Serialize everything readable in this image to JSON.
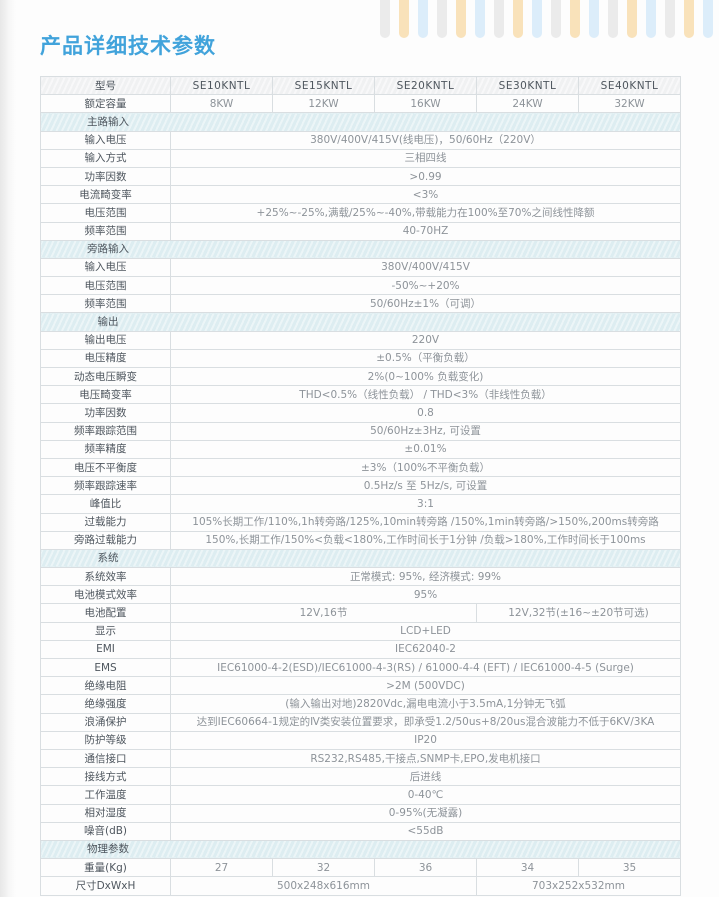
{
  "page": {
    "title": "产品详细技术参数"
  },
  "colors": {
    "accent_blue": "#41a3db",
    "section_bg": "#ddedf1",
    "header_bg": "#f0f1f2",
    "border": "#d9dee1",
    "label_text": "#4e565e",
    "value_text": "#8d9399"
  },
  "decor": {
    "bar_count": 18,
    "bar_colors": [
      "#ebebeb",
      "#f9e2ba",
      "#dcedfa"
    ]
  },
  "table": {
    "header": {
      "label": "型号",
      "models": [
        "SE10KNTL",
        "SE15KNTL",
        "SE20KNTL",
        "SE30KNTL",
        "SE40KNTL"
      ]
    },
    "rows": [
      {
        "type": "cells",
        "label": "额定容量",
        "values": [
          "8KW",
          "12KW",
          "16KW",
          "24KW",
          "32KW"
        ]
      },
      {
        "type": "section",
        "label": "主路输入"
      },
      {
        "type": "span",
        "label": "输入电压",
        "value": "380V/400V/415V(线电压)，50/60Hz（220V）"
      },
      {
        "type": "span",
        "label": "输入方式",
        "value": "三相四线"
      },
      {
        "type": "span",
        "label": "功率因数",
        "value": ">0.99"
      },
      {
        "type": "span",
        "label": "电流畸变率",
        "value": "<3%"
      },
      {
        "type": "span",
        "label": "电压范围",
        "value": "+25%~-25%,满载/25%~-40%,带载能力在100%至70%之间线性降额"
      },
      {
        "type": "span",
        "label": "频率范围",
        "value": "40-70HZ"
      },
      {
        "type": "section",
        "label": "旁路输入"
      },
      {
        "type": "span",
        "label": "输入电压",
        "value": "380V/400V/415V"
      },
      {
        "type": "span",
        "label": "电压范围",
        "value": "-50%~+20%"
      },
      {
        "type": "span",
        "label": "频率范围",
        "value": "50/60Hz±1%（可调）"
      },
      {
        "type": "section",
        "label": "输出"
      },
      {
        "type": "span",
        "label": "输出电压",
        "value": "220V"
      },
      {
        "type": "span",
        "label": "电压精度",
        "value": "±0.5%（平衡负载）"
      },
      {
        "type": "span",
        "label": "动态电压瞬变",
        "value": "2%(0~100% 负载变化)"
      },
      {
        "type": "span",
        "label": "电压畸变率",
        "value": "THD<0.5%（线性负载） /  THD<3%（非线性负载）"
      },
      {
        "type": "span",
        "label": "功率因数",
        "value": "0.8"
      },
      {
        "type": "span",
        "label": "频率跟踪范围",
        "value": "50/60Hz±3Hz, 可设置"
      },
      {
        "type": "span",
        "label": "频率精度",
        "value": "±0.01%"
      },
      {
        "type": "span",
        "label": "电压不平衡度",
        "value": "±3%（100%不平衡负载）"
      },
      {
        "type": "span",
        "label": "频率跟踪速率",
        "value": "0.5Hz/s 至 5Hz/s, 可设置"
      },
      {
        "type": "span",
        "label": "峰值比",
        "value": "3:1"
      },
      {
        "type": "span",
        "label": "过载能力",
        "value": "105%长期工作/110%,1h转旁路/125%,10min转旁路 /150%,1min转旁路/>150%,200ms转旁路"
      },
      {
        "type": "span",
        "label": "旁路过载能力",
        "value": "150%,长期工作/150%<负载<180%,工作时间长于1分钟 /负载>180%,工作时间长于100ms"
      },
      {
        "type": "section",
        "label": "系统"
      },
      {
        "type": "span",
        "label": "系统效率",
        "value": "正常模式: 95%, 经济模式: 99%"
      },
      {
        "type": "span",
        "label": "电池模式效率",
        "value": "95%"
      },
      {
        "type": "split",
        "label": "电池配置",
        "left": "12V,16节",
        "right": "12V,32节(±16~±20节可选)",
        "left_span": 3,
        "right_span": 2
      },
      {
        "type": "span",
        "label": "显示",
        "value": "LCD+LED"
      },
      {
        "type": "span",
        "label": "EMI",
        "value": "IEC62040-2"
      },
      {
        "type": "span",
        "label": "EMS",
        "value": "IEC61000-4-2(ESD)/IEC61000-4-3(RS) / 61000-4-4 (EFT) / IEC61000-4-5 (Surge)"
      },
      {
        "type": "span",
        "label": "绝缘电阻",
        "value": ">2M (500VDC)"
      },
      {
        "type": "span",
        "label": "绝缘强度",
        "value": "(输入输出对地)2820Vdc,漏电电流小于3.5mA,1分钟无飞弧"
      },
      {
        "type": "span",
        "label": "浪涌保护",
        "value": "达到IEC60664-1规定的Ⅳ类安装位置要求，即承受1.2/50us+8/20us混合波能力不低于6KV/3KA"
      },
      {
        "type": "span",
        "label": "防护等级",
        "value": "IP20"
      },
      {
        "type": "span",
        "label": "通信接口",
        "value": "RS232,RS485,干接点,SNMP卡,EPO,发电机接口"
      },
      {
        "type": "span",
        "label": "接线方式",
        "value": "后进线"
      },
      {
        "type": "span",
        "label": "工作温度",
        "value": "0-40℃"
      },
      {
        "type": "span",
        "label": "相对湿度",
        "value": "0-95%(无凝露)"
      },
      {
        "type": "span",
        "label": "噪音(dB)",
        "value": "<55dB"
      },
      {
        "type": "section",
        "label": "物理参数"
      },
      {
        "type": "cells",
        "label": "重量(Kg)",
        "values": [
          "27",
          "32",
          "36",
          "34",
          "35"
        ]
      },
      {
        "type": "split",
        "label": "尺寸DxWxH",
        "left": "500x248x616mm",
        "right": "703x252x532mm",
        "left_span": 3,
        "right_span": 2
      }
    ]
  }
}
